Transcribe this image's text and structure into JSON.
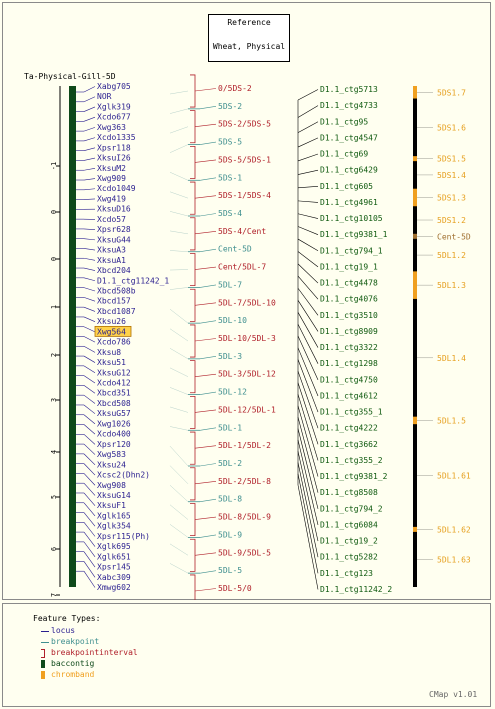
{
  "header": {
    "line1": "Reference",
    "line2": "Wheat, Physical"
  },
  "map_title": "Ta-Physical-Gill-5D",
  "ruler": {
    "ticks": [
      "-1",
      "0",
      "0",
      "1",
      "1",
      "2",
      "3",
      "4",
      "5",
      "5",
      "6",
      "7"
    ]
  },
  "loci": [
    "Xabg705",
    "NOR",
    "Xglk319",
    "Xcdo677",
    "Xwg363",
    "Xcdo1335",
    "Xpsr118",
    "XksuI26",
    "XksuM2",
    "Xwg909",
    "Xcdo1049",
    "Xwg419",
    "XksuD16",
    "Xcdo57",
    "Xpsr628",
    "XksuG44",
    "XksuA3",
    "XksuA1",
    "Xbcd204",
    "D1.1_ctg11242_1",
    "Xbcd508b",
    "Xbcd157",
    "Xbcd1087",
    "Xksu26",
    "Xwg564",
    "Xcdo786",
    "Xksu8",
    "Xksu51",
    "XksuG12",
    "Xcdo412",
    "Xbcd351",
    "Xbcd508",
    "XksuG57",
    "Xwg1026",
    "Xcdo400",
    "Xpsr120",
    "Xwg583",
    "Xksu24",
    "Xcsc2(Dhn2)",
    "Xwg908",
    "XksuG14",
    "XksuF1",
    "Xglk165",
    "Xglk354",
    "Xpsr115(Ph)",
    "Xglk695",
    "Xglk651",
    "Xpsr145",
    "Xabc309",
    "Xmwg602"
  ],
  "highlighted_locus": "Xwg564",
  "bins": [
    {
      "label": "0/5DS-2",
      "type": "interval"
    },
    {
      "label": "5DS-2",
      "type": "point"
    },
    {
      "label": "5DS-2/5DS-5",
      "type": "interval"
    },
    {
      "label": "5DS-5",
      "type": "point"
    },
    {
      "label": "5DS-5/5DS-1",
      "type": "interval"
    },
    {
      "label": "5DS-1",
      "type": "point"
    },
    {
      "label": "5DS-1/5DS-4",
      "type": "interval"
    },
    {
      "label": "5DS-4",
      "type": "point"
    },
    {
      "label": "5DS-4/Cent",
      "type": "interval"
    },
    {
      "label": "Cent-5D",
      "type": "point"
    },
    {
      "label": "Cent/5DL-7",
      "type": "interval"
    },
    {
      "label": "5DL-7",
      "type": "point"
    },
    {
      "label": "5DL-7/5DL-10",
      "type": "interval"
    },
    {
      "label": "5DL-10",
      "type": "point"
    },
    {
      "label": "5DL-10/5DL-3",
      "type": "interval"
    },
    {
      "label": "5DL-3",
      "type": "point"
    },
    {
      "label": "5DL-3/5DL-12",
      "type": "interval"
    },
    {
      "label": "5DL-12",
      "type": "point"
    },
    {
      "label": "5DL-12/5DL-1",
      "type": "interval"
    },
    {
      "label": "5DL-1",
      "type": "point"
    },
    {
      "label": "5DL-1/5DL-2",
      "type": "interval"
    },
    {
      "label": "5DL-2",
      "type": "point"
    },
    {
      "label": "5DL-2/5DL-8",
      "type": "interval"
    },
    {
      "label": "5DL-8",
      "type": "point"
    },
    {
      "label": "5DL-8/5DL-9",
      "type": "interval"
    },
    {
      "label": "5DL-9",
      "type": "point"
    },
    {
      "label": "5DL-9/5DL-5",
      "type": "interval"
    },
    {
      "label": "5DL-5",
      "type": "point"
    },
    {
      "label": "5DL-5/0",
      "type": "interval"
    }
  ],
  "contigs": [
    "D1.1_ctg5713",
    "D1.1_ctg4733",
    "D1.1_ctg95",
    "D1.1_ctg4547",
    "D1.1_ctg69",
    "D1.1_ctg6429",
    "D1.1_ctg605",
    "D1.1_ctg4961",
    "D1.1_ctg10105",
    "D1.1_ctg9381_1",
    "D1.1_ctg794_1",
    "D1.1_ctg19_1",
    "D1.1_ctg4478",
    "D1.1_ctg4076",
    "D1.1_ctg3510",
    "D1.1_ctg8909",
    "D1.1_ctg3322",
    "D1.1_ctg1298",
    "D1.1_ctg4750",
    "D1.1_ctg4612",
    "D1.1_ctg355_1",
    "D1.1_ctg4222",
    "D1.1_ctg3662",
    "D1.1_ctg355_2",
    "D1.1_ctg9381_2",
    "D1.1_ctg8508",
    "D1.1_ctg794_2",
    "D1.1_ctg6084",
    "D1.1_ctg19_2",
    "D1.1_ctg5282",
    "D1.1_ctg123",
    "D1.1_ctg11242_2"
  ],
  "chrombands": [
    {
      "label": "5DS1.7",
      "start": 0.0,
      "end": 0.025
    },
    {
      "label": "5DS1.6",
      "start": 0.025,
      "end": 0.14
    },
    {
      "label": "5DS1.5",
      "start": 0.14,
      "end": 0.15
    },
    {
      "label": "5DS1.4",
      "start": 0.15,
      "end": 0.205
    },
    {
      "label": "5DS1.3",
      "start": 0.205,
      "end": 0.24
    },
    {
      "label": "5DS1.2",
      "start": 0.24,
      "end": 0.295
    },
    {
      "label": "Cent-5D",
      "start": 0.295,
      "end": 0.305
    },
    {
      "label": "5DL1.2",
      "start": 0.305,
      "end": 0.37
    },
    {
      "label": "5DL1.3",
      "start": 0.37,
      "end": 0.425
    },
    {
      "label": "5DL1.4",
      "start": 0.425,
      "end": 0.66
    },
    {
      "label": "5DL1.5",
      "start": 0.66,
      "end": 0.675
    },
    {
      "label": "5DL1.61",
      "start": 0.675,
      "end": 0.88
    },
    {
      "label": "5DL1.62",
      "start": 0.88,
      "end": 0.89
    },
    {
      "label": "5DL1.63",
      "start": 0.89,
      "end": 1.0
    }
  ],
  "legend": {
    "title": "Feature Types:",
    "items": [
      {
        "label": "locus",
        "color": "#2a1f8f"
      },
      {
        "label": "breakpoint",
        "color": "#3f8f8f"
      },
      {
        "label": "breakpointinterval",
        "color": "#b0202a"
      },
      {
        "label": "baccontig",
        "color": "#0f4a1a"
      },
      {
        "label": "chromband",
        "color": "#f0a020"
      }
    ]
  },
  "footer": "CMap v1.01",
  "colors": {
    "locus_text": "#2a1f8f",
    "point_text": "#3f8f8f",
    "interval_text": "#b0202a",
    "contig_text": "#0f5a0f",
    "chromband_text": "#e6a020",
    "contig_bar": "#0f4a1a",
    "band_dark": "#000000",
    "band_light": "#f0a020",
    "cent": "#a07030",
    "highlight": "#ffd24a"
  }
}
